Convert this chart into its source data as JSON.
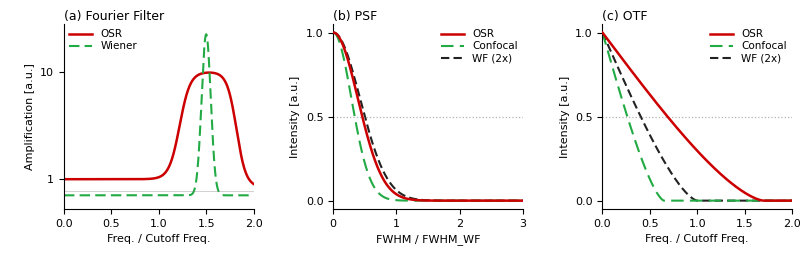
{
  "panel_a": {
    "title": "(a) Fourier Filter",
    "xlabel": "Freq. / Cutoff Freq.",
    "ylabel": "Amplification [a.u.]",
    "xlim": [
      0,
      2
    ],
    "ylim": [
      -1.5,
      14
    ],
    "yticks": [
      1,
      10
    ],
    "xticks": [
      0,
      0.5,
      1,
      1.5,
      2
    ],
    "legend": [
      "OSR",
      "Wiener"
    ]
  },
  "panel_b": {
    "title": "(b) PSF",
    "xlabel": "FWHM / FWHM_WF",
    "ylabel": "Intensity [a.u.]",
    "xlim": [
      0,
      3
    ],
    "ylim": [
      -0.05,
      1.05
    ],
    "yticks": [
      0,
      0.5,
      1
    ],
    "xticks": [
      0,
      1,
      2,
      3
    ],
    "legend": [
      "OSR",
      "Confocal",
      "WF (2x)"
    ]
  },
  "panel_c": {
    "title": "(c) OTF",
    "xlabel": "Freq. / Cutoff Freq.",
    "ylabel": "Intensity [a.u.]",
    "xlim": [
      0,
      2
    ],
    "ylim": [
      -0.05,
      1.05
    ],
    "yticks": [
      0,
      0.5,
      1
    ],
    "xticks": [
      0,
      0.5,
      1,
      1.5,
      2
    ],
    "legend": [
      "OSR",
      "Confocal",
      "WF (2x)"
    ]
  },
  "color_osr": "#cc0000",
  "color_confocal": "#22aa44",
  "color_wf": "#222222",
  "color_wiener": "#22aa44",
  "color_hline": "#aaaaaa"
}
